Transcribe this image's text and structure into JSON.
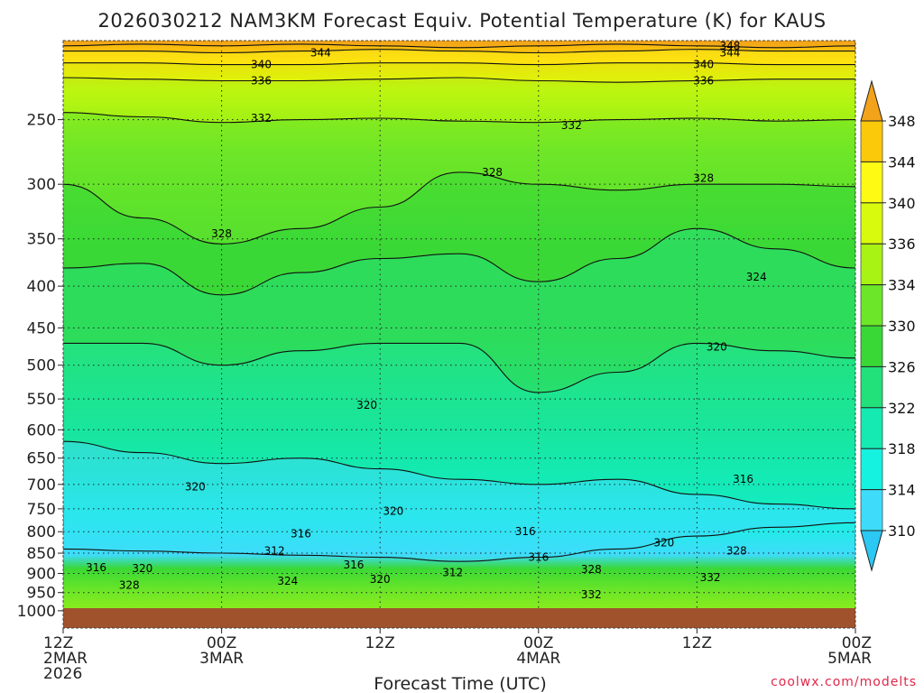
{
  "chart_data": {
    "type": "heatmap",
    "title": "2026030212 NAM3KM Forecast Equiv. Potential Temperature (K) for KAUS",
    "xlabel": "Forecast Time (UTC)",
    "ylabel": "",
    "credit": "coolwx.com/modelts",
    "x_ticks": [
      {
        "hours": 0,
        "lines": [
          "12Z",
          "2MAR",
          "2026"
        ]
      },
      {
        "hours": 12,
        "lines": [
          "00Z",
          "3MAR"
        ]
      },
      {
        "hours": 24,
        "lines": [
          "12Z"
        ]
      },
      {
        "hours": 36,
        "lines": [
          "00Z",
          "4MAR"
        ]
      },
      {
        "hours": 48,
        "lines": [
          "12Z"
        ]
      },
      {
        "hours": 60,
        "lines": [
          "00Z",
          "5MAR"
        ]
      }
    ],
    "xlim_hours": [
      0,
      60
    ],
    "y_scale": "log pressure (hPa), decreasing upward",
    "ylim_hpa": [
      1050,
      200
    ],
    "y_ticks": [
      250,
      300,
      350,
      400,
      450,
      500,
      550,
      600,
      650,
      700,
      750,
      800,
      850,
      900,
      950,
      1000
    ],
    "grid": "dotted at pressure ticks and time ticks",
    "surface_below_hpa": 990,
    "colorbar": {
      "labels": [
        348,
        344,
        340,
        336,
        334,
        330,
        326,
        322,
        318,
        314,
        310
      ],
      "colors": [
        "#f2a31a",
        "#fcc80a",
        "#fefa14",
        "#d8fa0c",
        "#a8f214",
        "#6ce628",
        "#3ad836",
        "#22e07a",
        "#14eab2",
        "#16f2e0",
        "#3edcfa",
        "#2ac8f2"
      ]
    },
    "contour_interval_K": 4,
    "contours": [
      {
        "level": 348,
        "hpa": [
          203,
          202,
          203,
          202,
          203,
          204,
          203,
          202,
          203,
          204,
          203
        ]
      },
      {
        "level": 344,
        "hpa": [
          206,
          206,
          207,
          206,
          205,
          206,
          207,
          206,
          205,
          206,
          206
        ]
      },
      {
        "level": 340,
        "hpa": [
          213,
          213,
          214,
          214,
          213,
          213,
          214,
          213,
          213,
          214,
          214
        ]
      },
      {
        "level": 336,
        "hpa": [
          222,
          223,
          224,
          224,
          223,
          222,
          224,
          225,
          224,
          223,
          223
        ]
      },
      {
        "level": 332,
        "hpa": [
          245,
          248,
          252,
          250,
          249,
          251,
          252,
          250,
          249,
          251,
          250
        ]
      },
      {
        "level": 328,
        "hpa": [
          300,
          330,
          355,
          340,
          320,
          290,
          300,
          305,
          300,
          300,
          302
        ]
      },
      {
        "level": 324,
        "hpa": [
          380,
          375,
          410,
          385,
          370,
          365,
          395,
          370,
          340,
          360,
          380
        ]
      },
      {
        "level": 320,
        "hpa": [
          470,
          470,
          500,
          480,
          470,
          470,
          540,
          510,
          470,
          480,
          490
        ]
      },
      {
        "level": 316,
        "hpa": [
          620,
          640,
          660,
          650,
          670,
          690,
          700,
          690,
          720,
          740,
          750
        ]
      },
      {
        "level": 312,
        "hpa": [
          840,
          845,
          850,
          855,
          860,
          870,
          860,
          840,
          810,
          790,
          780
        ]
      }
    ],
    "contour_labels": [
      {
        "text": "348",
        "hours": 50.5,
        "hpa": 203
      },
      {
        "text": "344",
        "hours": 19.5,
        "hpa": 207
      },
      {
        "text": "344",
        "hours": 50.5,
        "hpa": 207
      },
      {
        "text": "340",
        "hours": 15.0,
        "hpa": 214
      },
      {
        "text": "340",
        "hours": 48.5,
        "hpa": 214
      },
      {
        "text": "336",
        "hours": 15.0,
        "hpa": 224
      },
      {
        "text": "336",
        "hours": 48.5,
        "hpa": 224
      },
      {
        "text": "332",
        "hours": 15.0,
        "hpa": 249
      },
      {
        "text": "332",
        "hours": 38.5,
        "hpa": 254
      },
      {
        "text": "328",
        "hours": 32.5,
        "hpa": 290
      },
      {
        "text": "328",
        "hours": 48.5,
        "hpa": 295
      },
      {
        "text": "328",
        "hours": 12.0,
        "hpa": 345
      },
      {
        "text": "324",
        "hours": 52.5,
        "hpa": 390
      },
      {
        "text": "320",
        "hours": 49.5,
        "hpa": 475
      },
      {
        "text": "320",
        "hours": 23.0,
        "hpa": 560
      },
      {
        "text": "316",
        "hours": 51.5,
        "hpa": 690
      },
      {
        "text": "320",
        "hours": 10.0,
        "hpa": 705
      },
      {
        "text": "320",
        "hours": 25.0,
        "hpa": 755
      },
      {
        "text": "316",
        "hours": 18.0,
        "hpa": 805
      },
      {
        "text": "316",
        "hours": 35.0,
        "hpa": 800
      },
      {
        "text": "312",
        "hours": 16.0,
        "hpa": 845
      },
      {
        "text": "320",
        "hours": 45.5,
        "hpa": 825
      },
      {
        "text": "328",
        "hours": 51.0,
        "hpa": 845
      },
      {
        "text": "316",
        "hours": 2.5,
        "hpa": 885
      },
      {
        "text": "320",
        "hours": 6.0,
        "hpa": 888
      },
      {
        "text": "316",
        "hours": 22.0,
        "hpa": 878
      },
      {
        "text": "316",
        "hours": 36.0,
        "hpa": 860
      },
      {
        "text": "312",
        "hours": 29.5,
        "hpa": 898
      },
      {
        "text": "328",
        "hours": 40.0,
        "hpa": 890
      },
      {
        "text": "328",
        "hours": 5.0,
        "hpa": 930
      },
      {
        "text": "324",
        "hours": 17.0,
        "hpa": 920
      },
      {
        "text": "320",
        "hours": 24.0,
        "hpa": 915
      },
      {
        "text": "332",
        "hours": 49.0,
        "hpa": 910
      },
      {
        "text": "332",
        "hours": 40.0,
        "hpa": 955
      }
    ]
  }
}
